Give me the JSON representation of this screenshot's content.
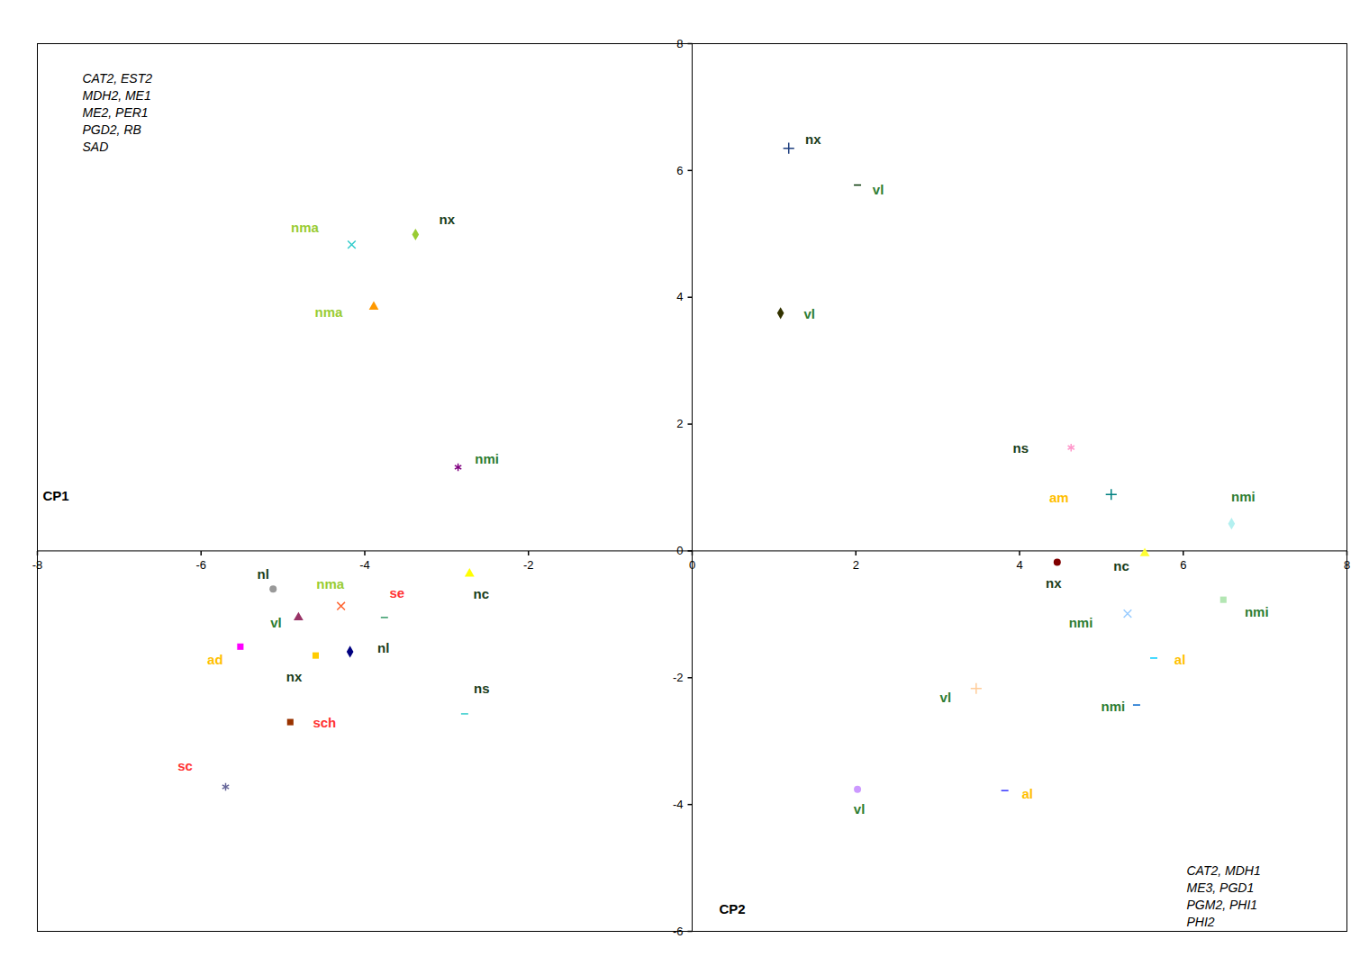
{
  "chart_data": {
    "type": "scatter",
    "x_label": "CP1",
    "y_label": "CP2",
    "xlim": [
      -8,
      8
    ],
    "ylim": [
      -6,
      8
    ],
    "xticks": [
      -8,
      -6,
      -4,
      -2,
      0,
      2,
      4,
      6,
      8
    ],
    "yticks": [
      -6,
      -4,
      -2,
      0,
      2,
      4,
      6,
      8
    ],
    "annotations": [
      [
        "CAT2, EST2",
        "MDH2, ME1",
        "ME2, PER1",
        "PGD2, RB",
        "SAD"
      ],
      [
        "CAT2, MDH1",
        "ME3, PGD1",
        "PGM2, PHI1",
        "PHI2"
      ]
    ],
    "points": [
      {
        "label": "nma",
        "x": -4.16,
        "y": 4.83,
        "color": "#33cccc",
        "marker": "x",
        "label_color": "#99cc33"
      },
      {
        "label": "nx",
        "x": -3.38,
        "y": 4.99,
        "color": "#99cc33",
        "marker": "diamond",
        "label_color": "#1a3d1a"
      },
      {
        "label": "nma",
        "x": -3.89,
        "y": 3.85,
        "color": "#ff9900",
        "marker": "triangle",
        "label_color": "#99cc33"
      },
      {
        "label": "nmi",
        "x": -2.86,
        "y": 1.32,
        "color": "#800080",
        "marker": "asterisk",
        "label_color": "#2e7d32"
      },
      {
        "label": "nc",
        "x": -2.72,
        "y": -0.36,
        "color": "#ffff00",
        "marker": "triangle",
        "label_color": "#1a3d1a"
      },
      {
        "label": "nl",
        "x": -5.12,
        "y": -0.6,
        "color": "#999999",
        "marker": "circle",
        "label_color": "#1a3d1a"
      },
      {
        "label": "nma",
        "x": -4.29,
        "y": -0.87,
        "color": "#ff6633",
        "marker": "x",
        "label_color": "#99cc33"
      },
      {
        "label": "se",
        "x": -3.76,
        "y": -1.05,
        "color": "#339966",
        "marker": "dash",
        "label_color": "#ff3333"
      },
      {
        "label": "vl",
        "x": -4.81,
        "y": -1.05,
        "color": "#993366",
        "marker": "triangle",
        "label_color": "#2e7d32"
      },
      {
        "label": "ad",
        "x": -5.52,
        "y": -1.51,
        "color": "#ff00ff",
        "marker": "square",
        "label_color": "#ffc000"
      },
      {
        "label": "nx",
        "x": -4.6,
        "y": -1.65,
        "color": "#ffcc00",
        "marker": "square",
        "label_color": "#1a3d1a"
      },
      {
        "label": "nl",
        "x": -4.18,
        "y": -1.59,
        "color": "#000080",
        "marker": "diamond",
        "label_color": "#1a3d1a"
      },
      {
        "label": "ns",
        "x": -2.78,
        "y": -2.57,
        "color": "#33cccc",
        "marker": "dash",
        "label_color": "#1a3d1a"
      },
      {
        "label": "sch",
        "x": -4.91,
        "y": -2.7,
        "color": "#993300",
        "marker": "square",
        "label_color": "#ff3333"
      },
      {
        "label": "sc",
        "x": -5.7,
        "y": -3.72,
        "color": "#666699",
        "marker": "asterisk",
        "label_color": "#ff3333"
      },
      {
        "label": "nx",
        "x": 1.18,
        "y": 6.35,
        "color": "#1f3f7f",
        "marker": "plus",
        "label_color": "#1a3d1a"
      },
      {
        "label": "vl",
        "x": 2.02,
        "y": 5.77,
        "color": "#003300",
        "marker": "dash",
        "label_color": "#2e7d32"
      },
      {
        "label": "vl",
        "x": 1.08,
        "y": 3.75,
        "color": "#333300",
        "marker": "diamond",
        "label_color": "#2e7d32"
      },
      {
        "label": "ns",
        "x": 4.63,
        "y": 1.63,
        "color": "#ff99cc",
        "marker": "asterisk",
        "label_color": "#1a3d1a"
      },
      {
        "label": "am",
        "x": 5.12,
        "y": 0.89,
        "color": "#008080",
        "marker": "plus",
        "label_color": "#ffc000"
      },
      {
        "label": "nmi",
        "x": 6.59,
        "y": 0.43,
        "color": "#b3f0f0",
        "marker": "diamond",
        "label_color": "#2e7d32"
      },
      {
        "label": "nc",
        "x": 5.53,
        "y": -0.04,
        "color": "#ffff33",
        "marker": "triangle",
        "label_color": "#1a3d1a"
      },
      {
        "label": "nx",
        "x": 4.46,
        "y": -0.18,
        "color": "#800000",
        "marker": "circle",
        "label_color": "#1a3d1a"
      },
      {
        "label": "nmi",
        "x": 6.49,
        "y": -0.77,
        "color": "#b3e6b3",
        "marker": "square",
        "label_color": "#2e7d32"
      },
      {
        "label": "nmi",
        "x": 5.32,
        "y": -0.99,
        "color": "#99ccff",
        "marker": "x",
        "label_color": "#2e7d32"
      },
      {
        "label": "al",
        "x": 5.64,
        "y": -1.69,
        "color": "#00ccff",
        "marker": "dash",
        "label_color": "#ffc000"
      },
      {
        "label": "vl",
        "x": 3.47,
        "y": -2.17,
        "color": "#ffcc99",
        "marker": "plus",
        "label_color": "#2e7d32"
      },
      {
        "label": "nmi",
        "x": 5.43,
        "y": -2.43,
        "color": "#0066cc",
        "marker": "dash",
        "label_color": "#2e7d32"
      },
      {
        "label": "vl",
        "x": 2.02,
        "y": -3.76,
        "color": "#cc99ff",
        "marker": "circle",
        "label_color": "#2e7d32"
      },
      {
        "label": "al",
        "x": 3.82,
        "y": -3.78,
        "color": "#3333ff",
        "marker": "dash",
        "label_color": "#ffc000"
      }
    ]
  }
}
